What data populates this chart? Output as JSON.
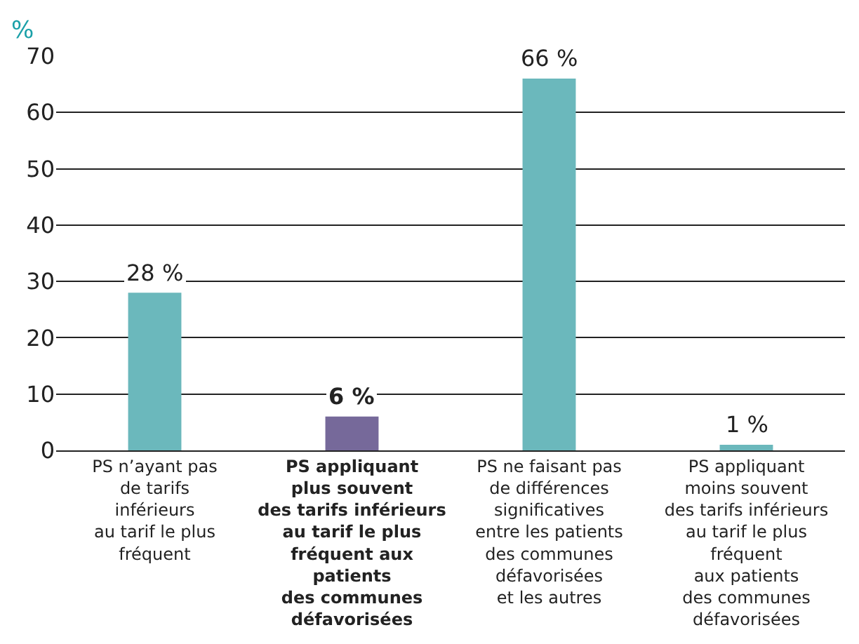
{
  "chart_data": {
    "type": "bar",
    "ylabel": "%",
    "categories": [
      "PS n’ayant pas\nde tarifs\ninférieurs\nau tarif le plus\nfréquent",
      "PS appliquant\nplus souvent\ndes tarifs inférieurs\nau tarif le plus\nfréquent aux\npatients\ndes communes\ndéfavorisées",
      "PS ne faisant pas\nde différences\nsignificatives\nentre les patients\ndes communes\ndéfavorisées\net les autres",
      "PS appliquant\nmoins souvent\ndes tarifs inférieurs\nau tarif le plus\nfréquent\naux patients\ndes communes\ndéfavorisées"
    ],
    "values": [
      28,
      6,
      66,
      1
    ],
    "value_labels": [
      "28 %",
      "6 %",
      "66 %",
      "1 %"
    ],
    "colors": [
      "#6bb8bc",
      "#76699a",
      "#6bb8bc",
      "#6bb8bc"
    ],
    "ylim": [
      0,
      70
    ],
    "yticks": [
      0,
      10,
      20,
      30,
      40,
      50,
      60,
      70
    ],
    "grid": "y",
    "legend": false
  }
}
